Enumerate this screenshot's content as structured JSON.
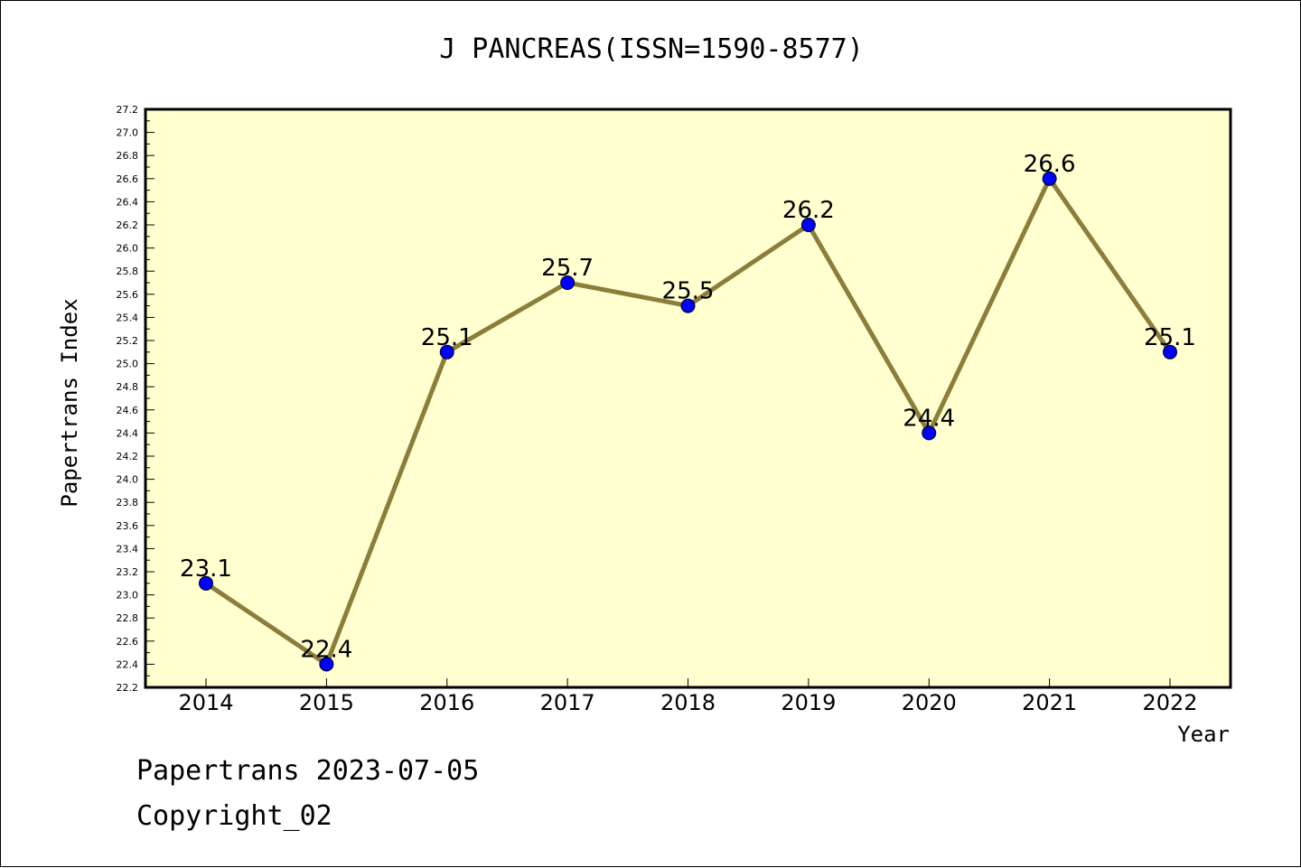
{
  "chart_data": {
    "type": "line",
    "title": "J PANCREAS(ISSN=1590-8577)",
    "xlabel": "Year",
    "ylabel": "Papertrans Index",
    "categories": [
      "2014",
      "2015",
      "2016",
      "2017",
      "2018",
      "2019",
      "2020",
      "2021",
      "2022"
    ],
    "series": [
      {
        "values": [
          23.1,
          22.4,
          25.1,
          25.7,
          25.5,
          26.2,
          24.4,
          26.6,
          25.1
        ]
      }
    ],
    "data_labels": [
      "23.1",
      "22.4",
      "25.1",
      "25.7",
      "25.5",
      "26.2",
      "24.4",
      "26.6",
      "25.1"
    ],
    "ylim": [
      22.2,
      27.2
    ],
    "yticks": [
      "22.2",
      "22.4",
      "22.6",
      "22.8",
      "23.0",
      "23.2",
      "23.4",
      "23.6",
      "23.8",
      "24.0",
      "24.2",
      "24.4",
      "24.6",
      "24.8",
      "25.0",
      "25.2",
      "25.4",
      "25.6",
      "25.8",
      "26.0",
      "26.2",
      "26.4",
      "26.6",
      "26.8",
      "27.0",
      "27.2"
    ],
    "grid": false,
    "colors": {
      "plot_background": "#ffffd0",
      "line": "#8b7d3a",
      "marker": "#0000ff"
    }
  },
  "footer": {
    "line1": "Papertrans 2023-07-05",
    "line2": "Copyright_02"
  }
}
